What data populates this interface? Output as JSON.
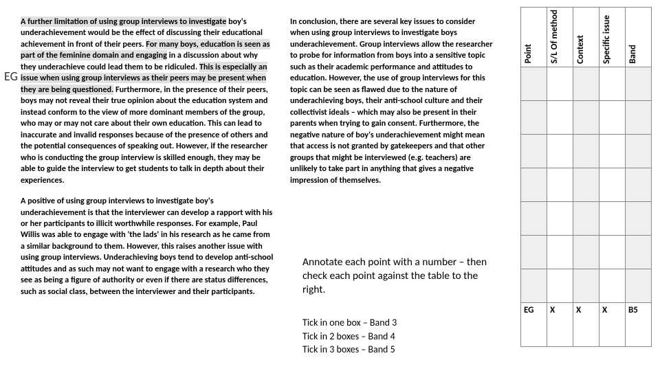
{
  "eg_label": "EG",
  "column1": {
    "p1_hl1": "A further limitation of using group interviews to investigate",
    "p1_plain1": " boy's underachievement would be the effect of discussing their educational achievement in front of their peers. ",
    "p1_hl2": "For many boys, education is seen as part of the feminine domain and engaging",
    "p1_plain2": " in a discussion about why they underachieve could lead them to be ridiculed. ",
    "p1_hl3": "This is especially an issue when using group interviews as their peers may be present when they are being questioned.",
    "p1_plain3": " Furthermore, in the presence of their peers, boys may not reveal their true opinion about the education system and instead conform to the view of more dominant members of the group, who may or may not care about their own education. This can lead to inaccurate and invalid responses because of the presence of others and the potential consequences of speaking out. However, if the researcher who is conducting the group interview is skilled enough, they may be able to guide the interview to get students to talk in depth about their experiences.",
    "p2": "A positive of using group interviews to investigate boy's underachievement is that the interviewer can develop a rapport with his or her participants to illicit worthwhile responses. For example, Paul Willis was able to engage with 'the lads' in his research as he came from a similar background to them. However, this raises another issue with using group interviews. Underachieving boys tend to develop anti-school attitudes and as such may not want to engage with a research who they see as being a figure of authority or even if there are status differences, such as social class, between the interviewer and their participants."
  },
  "column2": {
    "p1": "In conclusion, there are several key issues to consider when using group interviews to investigate boys underachievement. Group interviews allow the researcher to probe for information from boys into a sensitive topic such as their academic performance and attitudes to education. However, the use of group interviews for this topic can be seen as flawed due to the nature of underachieving boys, their anti-school culture and their collectivist ideals – which may also be present in their parents when trying to gain consent. Furthermore, the negative nature of boy's underachievement might mean that access is not granted by gatekeepers and that other groups that might be interviewed (e.g. teachers) are unlikely to take part in anything that gives a negative impression of themselves."
  },
  "annotate": "Annotate each point with a number – then check each point against the table to the right.",
  "ticks": {
    "l1": "Tick in one box – Band 3",
    "l2": "Tick in 2 boxes – Band 4",
    "l3": "Tick in 3 boxes – Band 5"
  },
  "table": {
    "headers": [
      "Point",
      "S/L Of method",
      "Context",
      "Specific issue",
      "Band"
    ],
    "last_row": [
      "EG",
      "X",
      "X",
      "X",
      "B5"
    ]
  }
}
